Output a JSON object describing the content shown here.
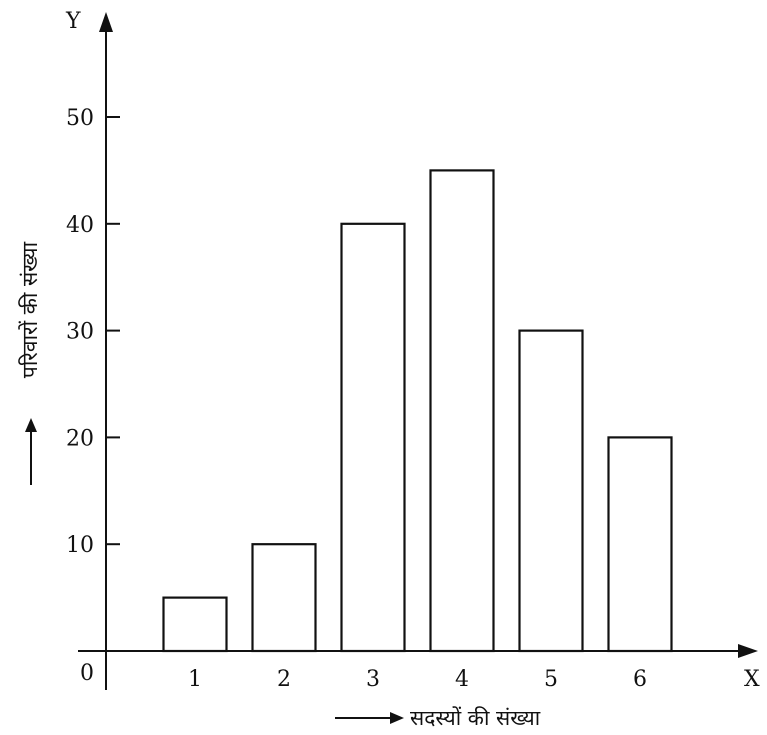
{
  "chart_data": {
    "type": "bar",
    "categories": [
      "1",
      "2",
      "3",
      "4",
      "5",
      "6"
    ],
    "values": [
      5,
      10,
      40,
      45,
      30,
      20
    ],
    "title": "",
    "xlabel": "सदस्यों की संख्या",
    "ylabel": "परिवारों की संख्या",
    "ylim": [
      0,
      55
    ],
    "yticks": [
      "10",
      "20",
      "30",
      "40",
      "50"
    ],
    "x_axis_letter": "X",
    "y_axis_letter": "Y",
    "origin_label": "0",
    "grid": false,
    "legend": "none"
  }
}
